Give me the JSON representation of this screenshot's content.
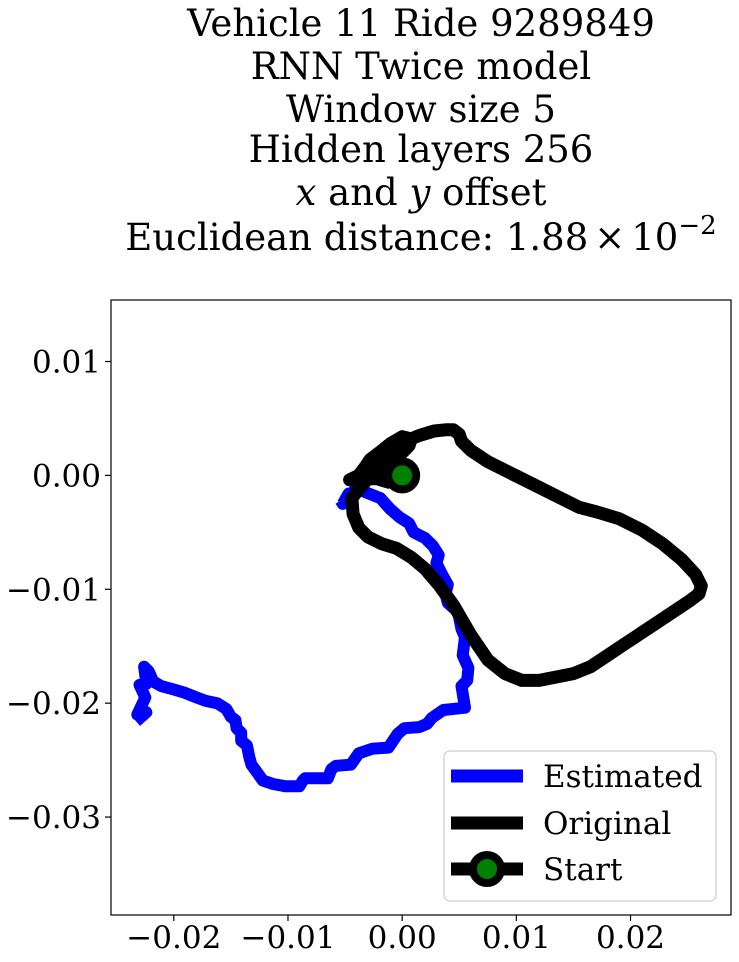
{
  "chart_data": {
    "type": "line",
    "title": {
      "line1": "Vehicle 11 Ride 9289849",
      "line2": "RNN Twice model",
      "line3": "Window size 5",
      "line4": "Hidden layers 256",
      "line5_x": "x",
      "line5_mid": " and ",
      "line5_y": "y",
      "line5_end": " offset",
      "line6_prefix": "Euclidean distance: 1.88",
      "line6_times": "×",
      "line6_base": "10",
      "line6_exp": "−2"
    },
    "xlim": [
      -0.0255,
      0.0288
    ],
    "ylim": [
      -0.0386,
      0.0154
    ],
    "xticks": [
      -0.02,
      -0.01,
      0.0,
      0.01,
      0.02
    ],
    "xtick_labels": [
      "−0.02",
      "−0.01",
      "0.00",
      "0.01",
      "0.02"
    ],
    "yticks": [
      0.01,
      0.0,
      -0.01,
      -0.02,
      -0.03
    ],
    "ytick_labels": [
      "0.01",
      "0.00",
      "−0.01",
      "−0.02",
      "−0.03"
    ],
    "grid": false,
    "legend_position": "lower right",
    "series": [
      {
        "name": "Estimated",
        "color": "#0000ff",
        "x": [
          -0.0233,
          -0.0224,
          -0.0232,
          -0.0225,
          -0.023,
          -0.0224,
          -0.0226,
          -0.0222,
          -0.0218,
          -0.0211,
          -0.02,
          -0.019,
          -0.018,
          -0.0172,
          -0.0162,
          -0.0154,
          -0.015,
          -0.0146,
          -0.0145,
          -0.0141,
          -0.0141,
          -0.0136,
          -0.0134,
          -0.0132,
          -0.0127,
          -0.0122,
          -0.0113,
          -0.0102,
          -0.009,
          -0.0087,
          -0.0085,
          -0.0065,
          -0.0062,
          -0.0058,
          -0.0045,
          -0.0038,
          -0.0026,
          -0.0012,
          -0.0004,
          0.0002,
          0.0015,
          0.0022,
          0.0026,
          0.0036,
          0.0055,
          0.0052,
          0.0057,
          0.0058,
          0.0053,
          0.0055,
          0.0052,
          0.0049,
          0.004,
          0.0038,
          0.004,
          0.0035,
          0.003,
          0.0032,
          0.0027,
          0.002,
          0.001,
          0.0006,
          -0.0002,
          -0.001,
          -0.0019,
          -0.0034,
          -0.0039,
          -0.0048,
          -0.0047,
          -0.0052,
          -0.0054
        ],
        "y": [
          -0.0216,
          -0.0208,
          -0.021,
          -0.0195,
          -0.0184,
          -0.0183,
          -0.0168,
          -0.0172,
          -0.0181,
          -0.0185,
          -0.0188,
          -0.0191,
          -0.0195,
          -0.0198,
          -0.02,
          -0.0205,
          -0.0212,
          -0.0215,
          -0.0222,
          -0.0226,
          -0.0233,
          -0.0237,
          -0.0247,
          -0.0254,
          -0.0261,
          -0.0268,
          -0.0271,
          -0.0273,
          -0.0273,
          -0.0268,
          -0.0266,
          -0.0266,
          -0.0258,
          -0.0255,
          -0.0254,
          -0.0244,
          -0.024,
          -0.0239,
          -0.0227,
          -0.0222,
          -0.0221,
          -0.0218,
          -0.0213,
          -0.0206,
          -0.0204,
          -0.0185,
          -0.018,
          -0.0169,
          -0.0158,
          -0.0142,
          -0.0135,
          -0.012,
          -0.0112,
          -0.0104,
          -0.0096,
          -0.0087,
          -0.0077,
          -0.007,
          -0.0062,
          -0.0055,
          -0.005,
          -0.0042,
          -0.0037,
          -0.003,
          -0.002,
          -0.0014,
          -0.001,
          -0.002,
          -0.0016,
          -0.0025,
          -0.0022
        ]
      },
      {
        "name": "Original",
        "color": "#000000",
        "x": [
          0.0,
          -0.0012,
          -0.0022,
          -0.003,
          -0.0038,
          -0.0044,
          -0.0043,
          -0.0038,
          -0.003,
          -0.0018,
          -0.0005,
          0.0008,
          0.002,
          0.0032,
          0.0045,
          0.006,
          0.0075,
          0.009,
          0.0105,
          0.012,
          0.0135,
          0.015,
          0.0165,
          0.018,
          0.0195,
          0.021,
          0.0225,
          0.024,
          0.0252,
          0.026,
          0.0262,
          0.0257,
          0.0245,
          0.0228,
          0.021,
          0.019,
          0.017,
          0.0155,
          0.0135,
          0.0115,
          0.0095,
          0.0075,
          0.006,
          0.0052,
          0.005,
          0.0045,
          0.0038,
          0.0028,
          0.0015,
          0.0,
          -0.0015,
          -0.0025,
          -0.0033,
          -0.0034,
          -0.0025,
          -0.0012,
          0.0,
          0.0006,
          0.0008,
          0.0,
          -0.001,
          -0.002,
          -0.0028,
          -0.0032,
          -0.0038,
          -0.0046,
          -0.004,
          -0.0022,
          0.0
        ],
        "y": [
          0.0,
          -0.0006,
          -0.0003,
          -0.0003,
          -0.0012,
          -0.002,
          -0.0034,
          -0.0046,
          -0.0054,
          -0.006,
          -0.0064,
          -0.0072,
          -0.0082,
          -0.0096,
          -0.0114,
          -0.014,
          -0.0162,
          -0.0174,
          -0.018,
          -0.018,
          -0.0177,
          -0.0174,
          -0.0168,
          -0.0158,
          -0.0148,
          -0.0138,
          -0.0128,
          -0.0118,
          -0.011,
          -0.0104,
          -0.0097,
          -0.0087,
          -0.0074,
          -0.006,
          -0.0048,
          -0.0038,
          -0.0032,
          -0.0028,
          -0.0018,
          -0.0008,
          0.0002,
          0.0012,
          0.0022,
          0.003,
          0.0036,
          0.004,
          0.004,
          0.0039,
          0.0035,
          0.0029,
          0.0022,
          0.0012,
          0.0003,
          0.0,
          0.0002,
          0.0012,
          0.002,
          0.0026,
          0.0032,
          0.0034,
          0.0028,
          0.002,
          0.0014,
          0.0008,
          0.0,
          -0.0004,
          -0.0002,
          0.0001,
          0.0
        ]
      },
      {
        "name": "Start",
        "color": "#000000",
        "marker_color": "#008000",
        "x": [
          0.0
        ],
        "y": [
          0.0
        ]
      }
    ]
  }
}
